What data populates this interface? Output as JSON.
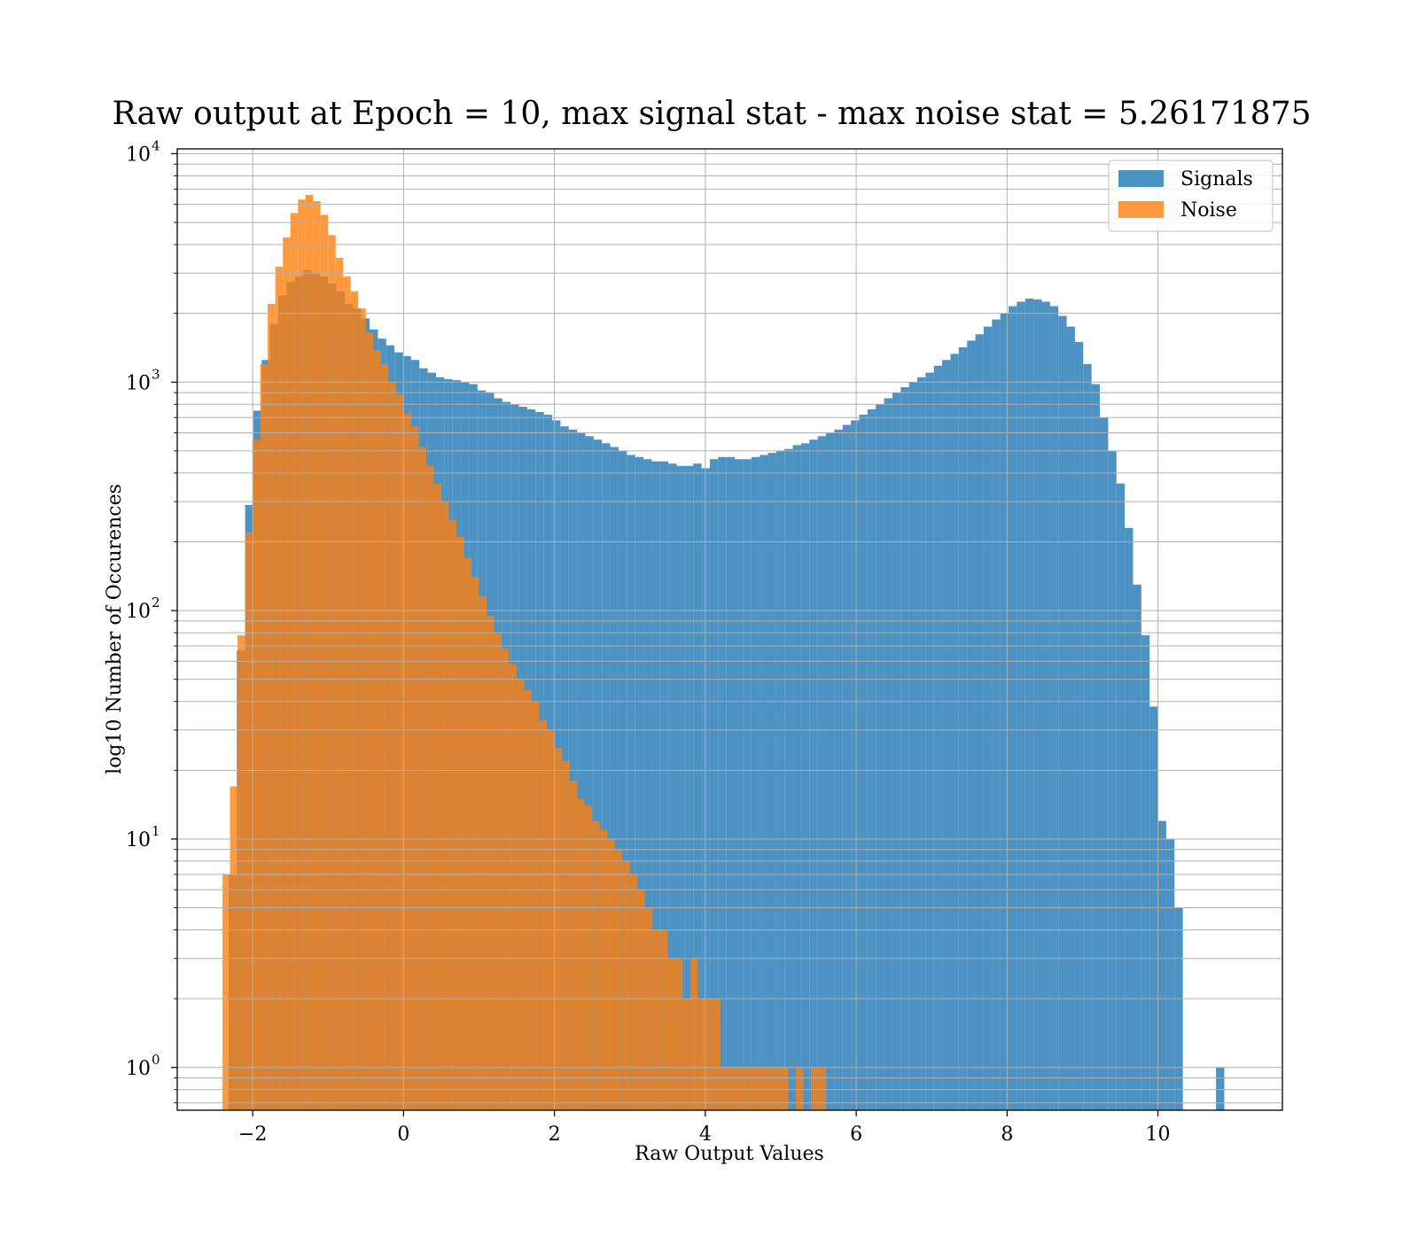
{
  "chart_data": {
    "type": "bar",
    "title": "Raw output at Epoch = 10, max signal stat - max noise stat = 5.26171875",
    "xlabel": "Raw Output Values",
    "ylabel": "log10 Number of Occurences",
    "xlim": [
      -3.0,
      11.65
    ],
    "ylim": [
      0.65,
      10500
    ],
    "yscale": "log",
    "grid": true,
    "legend_position": "top-right",
    "x_ticks": [
      {
        "value": -2,
        "label": "−2"
      },
      {
        "value": 0,
        "label": "0"
      },
      {
        "value": 2,
        "label": "2"
      },
      {
        "value": 4,
        "label": "4"
      },
      {
        "value": 6,
        "label": "6"
      },
      {
        "value": 8,
        "label": "8"
      },
      {
        "value": 10,
        "label": "10"
      }
    ],
    "y_ticks": [
      {
        "value": 1,
        "label": "10",
        "exp": "0"
      },
      {
        "value": 10,
        "label": "10",
        "exp": "1"
      },
      {
        "value": 100,
        "label": "10",
        "exp": "2"
      },
      {
        "value": 1000,
        "label": "10",
        "exp": "3"
      },
      {
        "value": 10000,
        "label": "10",
        "exp": "4"
      }
    ],
    "series": [
      {
        "name": "Signals",
        "color": "#1f77b4",
        "opacity": 0.8,
        "bins": [
          [
            -2.32,
            -2.21,
            7
          ],
          [
            -2.21,
            -2.1,
            67
          ],
          [
            -2.1,
            -1.99,
            290
          ],
          [
            -1.99,
            -1.88,
            750
          ],
          [
            -1.88,
            -1.77,
            1250
          ],
          [
            -1.77,
            -1.66,
            1800
          ],
          [
            -1.66,
            -1.55,
            2400
          ],
          [
            -1.55,
            -1.44,
            2750
          ],
          [
            -1.44,
            -1.33,
            2900
          ],
          [
            -1.33,
            -1.22,
            3100
          ],
          [
            -1.22,
            -1.11,
            3000
          ],
          [
            -1.11,
            -1.0,
            2900
          ],
          [
            -1.0,
            -0.89,
            2700
          ],
          [
            -0.89,
            -0.78,
            2500
          ],
          [
            -0.78,
            -0.67,
            2200
          ],
          [
            -0.67,
            -0.56,
            2100
          ],
          [
            -0.56,
            -0.45,
            1900
          ],
          [
            -0.45,
            -0.34,
            1700
          ],
          [
            -0.34,
            -0.23,
            1550
          ],
          [
            -0.23,
            -0.12,
            1450
          ],
          [
            -0.12,
            -0.01,
            1350
          ],
          [
            -0.01,
            0.1,
            1300
          ],
          [
            0.1,
            0.21,
            1250
          ],
          [
            0.21,
            0.32,
            1150
          ],
          [
            0.32,
            0.43,
            1100
          ],
          [
            0.43,
            0.54,
            1050
          ],
          [
            0.54,
            0.65,
            1030
          ],
          [
            0.65,
            0.76,
            1020
          ],
          [
            0.76,
            0.87,
            1000
          ],
          [
            0.87,
            0.98,
            980
          ],
          [
            0.98,
            1.09,
            920
          ],
          [
            1.09,
            1.2,
            900
          ],
          [
            1.2,
            1.31,
            850
          ],
          [
            1.31,
            1.42,
            820
          ],
          [
            1.42,
            1.53,
            800
          ],
          [
            1.53,
            1.64,
            780
          ],
          [
            1.64,
            1.75,
            760
          ],
          [
            1.75,
            1.86,
            740
          ],
          [
            1.86,
            1.97,
            720
          ],
          [
            1.97,
            2.08,
            680
          ],
          [
            2.08,
            2.19,
            640
          ],
          [
            2.19,
            2.3,
            620
          ],
          [
            2.3,
            2.41,
            600
          ],
          [
            2.41,
            2.52,
            580
          ],
          [
            2.52,
            2.63,
            560
          ],
          [
            2.63,
            2.74,
            540
          ],
          [
            2.74,
            2.85,
            520
          ],
          [
            2.85,
            2.96,
            500
          ],
          [
            2.96,
            3.07,
            480
          ],
          [
            3.07,
            3.18,
            470
          ],
          [
            3.18,
            3.29,
            460
          ],
          [
            3.29,
            3.4,
            450
          ],
          [
            3.4,
            3.51,
            450
          ],
          [
            3.51,
            3.62,
            440
          ],
          [
            3.62,
            3.73,
            430
          ],
          [
            3.73,
            3.84,
            430
          ],
          [
            3.84,
            3.95,
            440
          ],
          [
            3.95,
            4.06,
            420
          ],
          [
            4.06,
            4.17,
            460
          ],
          [
            4.17,
            4.28,
            470
          ],
          [
            4.28,
            4.39,
            470
          ],
          [
            4.39,
            4.5,
            460
          ],
          [
            4.5,
            4.61,
            460
          ],
          [
            4.61,
            4.72,
            470
          ],
          [
            4.72,
            4.83,
            480
          ],
          [
            4.83,
            4.94,
            490
          ],
          [
            4.94,
            5.05,
            500
          ],
          [
            5.05,
            5.16,
            510
          ],
          [
            5.16,
            5.27,
            530
          ],
          [
            5.27,
            5.38,
            540
          ],
          [
            5.38,
            5.49,
            560
          ],
          [
            5.49,
            5.6,
            580
          ],
          [
            5.6,
            5.71,
            600
          ],
          [
            5.71,
            5.82,
            620
          ],
          [
            5.82,
            5.93,
            650
          ],
          [
            5.93,
            6.04,
            680
          ],
          [
            6.04,
            6.15,
            720
          ],
          [
            6.15,
            6.26,
            760
          ],
          [
            6.26,
            6.37,
            800
          ],
          [
            6.37,
            6.48,
            850
          ],
          [
            6.48,
            6.59,
            900
          ],
          [
            6.59,
            6.7,
            950
          ],
          [
            6.7,
            6.81,
            1000
          ],
          [
            6.81,
            6.92,
            1050
          ],
          [
            6.92,
            7.03,
            1100
          ],
          [
            7.03,
            7.14,
            1180
          ],
          [
            7.14,
            7.25,
            1250
          ],
          [
            7.25,
            7.36,
            1330
          ],
          [
            7.36,
            7.47,
            1420
          ],
          [
            7.47,
            7.58,
            1520
          ],
          [
            7.58,
            7.69,
            1620
          ],
          [
            7.69,
            7.8,
            1750
          ],
          [
            7.8,
            7.91,
            1880
          ],
          [
            7.91,
            8.02,
            2000
          ],
          [
            8.02,
            8.13,
            2150
          ],
          [
            8.13,
            8.24,
            2250
          ],
          [
            8.24,
            8.35,
            2320
          ],
          [
            8.35,
            8.46,
            2300
          ],
          [
            8.46,
            8.57,
            2250
          ],
          [
            8.57,
            8.68,
            2150
          ],
          [
            8.68,
            8.79,
            1950
          ],
          [
            8.79,
            8.9,
            1750
          ],
          [
            8.9,
            9.01,
            1500
          ],
          [
            9.01,
            9.12,
            1200
          ],
          [
            9.12,
            9.23,
            980
          ],
          [
            9.23,
            9.34,
            700
          ],
          [
            9.34,
            9.45,
            500
          ],
          [
            9.45,
            9.56,
            360
          ],
          [
            9.56,
            9.67,
            230
          ],
          [
            9.67,
            9.78,
            130
          ],
          [
            9.78,
            9.89,
            78
          ],
          [
            9.89,
            10.0,
            38
          ],
          [
            10.0,
            10.11,
            12
          ],
          [
            10.11,
            10.22,
            10
          ],
          [
            10.22,
            10.33,
            5
          ],
          [
            10.33,
            10.44,
            0
          ],
          [
            10.44,
            10.55,
            0
          ],
          [
            10.55,
            10.66,
            0
          ],
          [
            10.66,
            10.77,
            0
          ],
          [
            10.77,
            10.88,
            1
          ]
        ]
      },
      {
        "name": "Noise",
        "color": "#ff7f0e",
        "opacity": 0.8,
        "bins": [
          [
            -2.4,
            -2.3,
            7
          ],
          [
            -2.3,
            -2.2,
            17
          ],
          [
            -2.2,
            -2.1,
            78
          ],
          [
            -2.1,
            -2.0,
            220
          ],
          [
            -2.0,
            -1.9,
            560
          ],
          [
            -1.9,
            -1.8,
            1200
          ],
          [
            -1.8,
            -1.7,
            2200
          ],
          [
            -1.7,
            -1.6,
            3200
          ],
          [
            -1.6,
            -1.5,
            4300
          ],
          [
            -1.5,
            -1.4,
            5500
          ],
          [
            -1.4,
            -1.3,
            6300
          ],
          [
            -1.3,
            -1.2,
            6600
          ],
          [
            -1.2,
            -1.1,
            6200
          ],
          [
            -1.1,
            -1.0,
            5400
          ],
          [
            -1.0,
            -0.9,
            4400
          ],
          [
            -0.9,
            -0.8,
            3500
          ],
          [
            -0.8,
            -0.7,
            2900
          ],
          [
            -0.7,
            -0.6,
            2500
          ],
          [
            -0.6,
            -0.5,
            2100
          ],
          [
            -0.5,
            -0.4,
            1650
          ],
          [
            -0.4,
            -0.3,
            1380
          ],
          [
            -0.3,
            -0.2,
            1200
          ],
          [
            -0.2,
            -0.1,
            1000
          ],
          [
            -0.1,
            0.0,
            880
          ],
          [
            0.0,
            0.1,
            730
          ],
          [
            0.1,
            0.2,
            640
          ],
          [
            0.2,
            0.3,
            520
          ],
          [
            0.3,
            0.4,
            430
          ],
          [
            0.4,
            0.5,
            360
          ],
          [
            0.5,
            0.6,
            300
          ],
          [
            0.6,
            0.7,
            250
          ],
          [
            0.7,
            0.8,
            210
          ],
          [
            0.8,
            0.9,
            170
          ],
          [
            0.9,
            1.0,
            140
          ],
          [
            1.0,
            1.1,
            115
          ],
          [
            1.1,
            1.2,
            95
          ],
          [
            1.2,
            1.3,
            80
          ],
          [
            1.3,
            1.4,
            68
          ],
          [
            1.4,
            1.5,
            58
          ],
          [
            1.5,
            1.6,
            50
          ],
          [
            1.6,
            1.7,
            45
          ],
          [
            1.7,
            1.8,
            40
          ],
          [
            1.8,
            1.9,
            33
          ],
          [
            1.9,
            2.0,
            30
          ],
          [
            2.0,
            2.1,
            25
          ],
          [
            2.1,
            2.2,
            22
          ],
          [
            2.2,
            2.3,
            18
          ],
          [
            2.3,
            2.4,
            15
          ],
          [
            2.4,
            2.5,
            14
          ],
          [
            2.5,
            2.6,
            12
          ],
          [
            2.6,
            2.7,
            11
          ],
          [
            2.7,
            2.8,
            10
          ],
          [
            2.8,
            2.9,
            9
          ],
          [
            2.9,
            3.0,
            8
          ],
          [
            3.0,
            3.1,
            7
          ],
          [
            3.1,
            3.2,
            6
          ],
          [
            3.2,
            3.3,
            5
          ],
          [
            3.3,
            3.4,
            4
          ],
          [
            3.4,
            3.5,
            4
          ],
          [
            3.5,
            3.6,
            3
          ],
          [
            3.6,
            3.7,
            3
          ],
          [
            3.7,
            3.8,
            2
          ],
          [
            3.8,
            3.9,
            3
          ],
          [
            3.9,
            4.0,
            2
          ],
          [
            4.0,
            4.1,
            2
          ],
          [
            4.1,
            4.2,
            2
          ],
          [
            4.2,
            4.3,
            1
          ],
          [
            4.3,
            4.4,
            1
          ],
          [
            4.4,
            4.5,
            1
          ],
          [
            4.5,
            4.6,
            1
          ],
          [
            4.6,
            4.7,
            1
          ],
          [
            4.7,
            4.8,
            1
          ],
          [
            4.8,
            4.9,
            1
          ],
          [
            4.9,
            5.0,
            1
          ],
          [
            5.0,
            5.1,
            1
          ],
          [
            5.1,
            5.2,
            0
          ],
          [
            5.2,
            5.3,
            1
          ],
          [
            5.3,
            5.4,
            0
          ],
          [
            5.4,
            5.5,
            1
          ],
          [
            5.5,
            5.6,
            1
          ]
        ]
      }
    ]
  }
}
